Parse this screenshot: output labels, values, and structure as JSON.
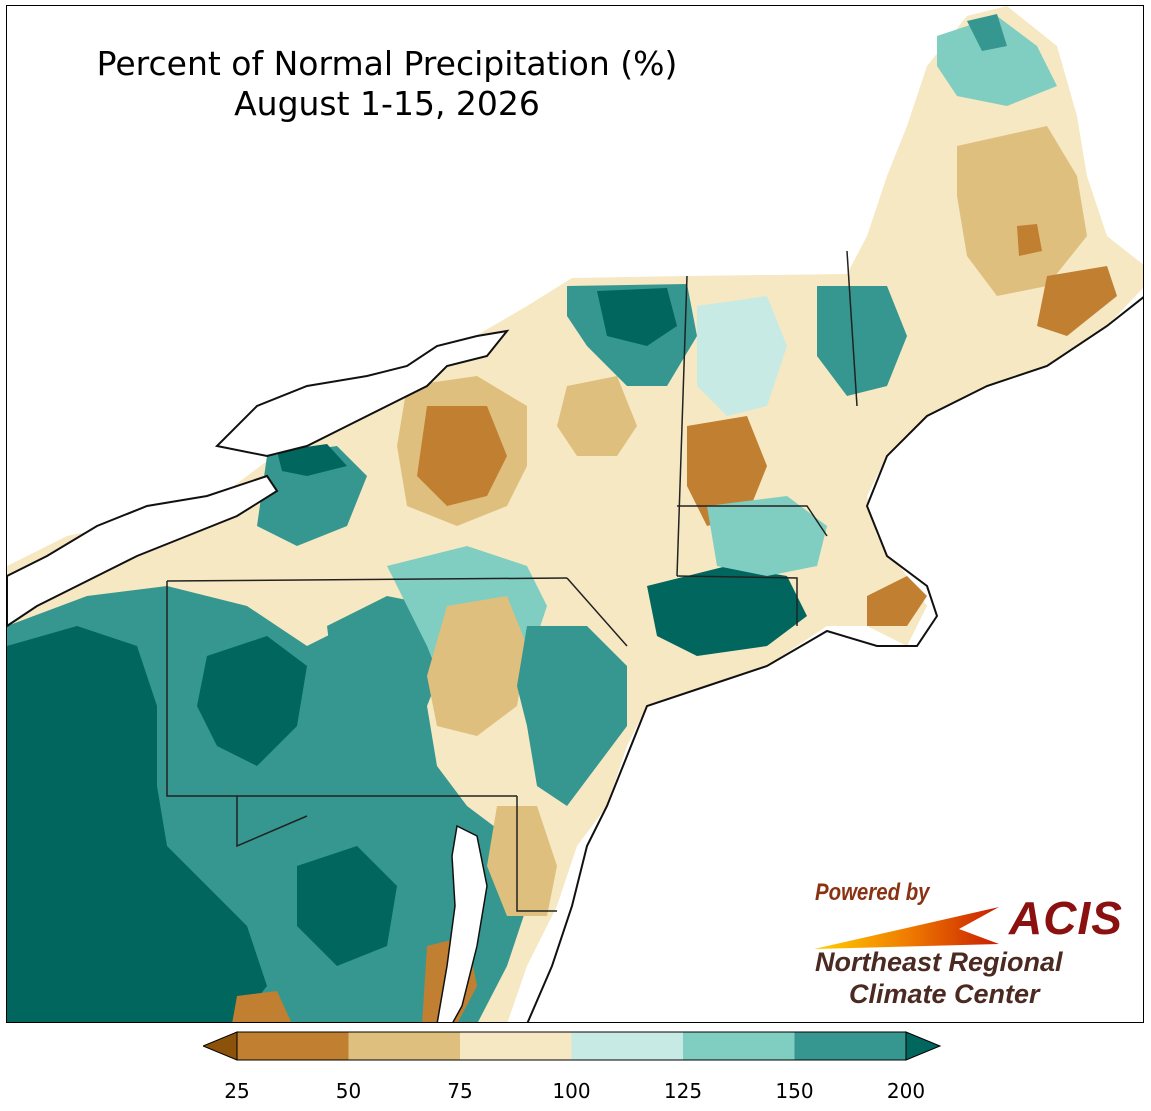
{
  "map": {
    "title_line1": "Percent of Normal Precipitation (%)",
    "title_line2": "August 1-15, 2026",
    "colors": {
      "c25_50": "#c17f32",
      "c50_75": "#dfbf7d",
      "c75_100": "#f6e8c3",
      "c100_125": "#c7eae4",
      "c125_150": "#80cdc1",
      "c150_200": "#35978f",
      "c200_plus": "#01665e",
      "below_25": "#8c510a",
      "water": "#ffffff"
    }
  },
  "colorbar": {
    "ticks": [
      "25",
      "50",
      "75",
      "100",
      "125",
      "150",
      "200"
    ],
    "colors": [
      "#c17f32",
      "#dfbf7d",
      "#f6e8c3",
      "#c7eae4",
      "#80cdc1",
      "#35978f"
    ],
    "under_color": "#8c510a",
    "over_color": "#01665e"
  },
  "credits": {
    "powered_by": "Powered by",
    "acis": "ACIS",
    "center_line1": "Northeast Regional",
    "center_line2": "Climate Center"
  }
}
